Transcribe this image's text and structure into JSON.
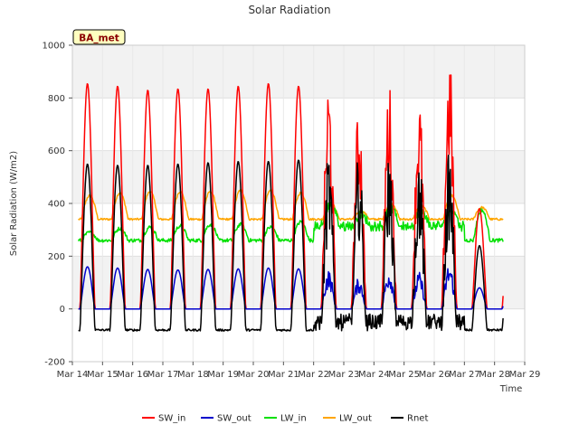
{
  "chart_data": {
    "type": "line",
    "title": "Solar Radiation",
    "xlabel": "Time",
    "ylabel": "Solar Radiation (W/m2)",
    "badge": "BA_met",
    "ylim": [
      -200,
      1000
    ],
    "yticks": [
      "-200",
      "0",
      "200",
      "400",
      "600",
      "800",
      "1000"
    ],
    "xlim_days": [
      14,
      29
    ],
    "xticks": [
      "Mar 14",
      "Mar 15",
      "Mar 16",
      "Mar 17",
      "Mar 18",
      "Mar 19",
      "Mar 20",
      "Mar 21",
      "Mar 22",
      "Mar 23",
      "Mar 24",
      "Mar 25",
      "Mar 26",
      "Mar 27",
      "Mar 28",
      "Mar 29"
    ],
    "grid": true,
    "legend_position": "bottom",
    "series": [
      {
        "name": "SW_in",
        "color": "#ff0000",
        "daily_peak": [
          855,
          845,
          830,
          835,
          835,
          845,
          855,
          845,
          880,
          780,
          870,
          820,
          970,
          380
        ],
        "night_value": 0
      },
      {
        "name": "SW_out",
        "color": "#0000cc",
        "daily_peak": [
          160,
          155,
          150,
          148,
          150,
          152,
          155,
          152,
          150,
          120,
          155,
          140,
          175,
          80
        ],
        "night_value": 0
      },
      {
        "name": "LW_in",
        "color": "#00e000",
        "daily_peak": [
          290,
          305,
          310,
          315,
          320,
          320,
          310,
          330,
          340,
          300,
          320,
          310,
          320,
          375
        ],
        "night_value": 260
      },
      {
        "name": "LW_out",
        "color": "#ffa500",
        "daily_peak": [
          430,
          440,
          445,
          445,
          445,
          450,
          450,
          440,
          400,
          370,
          400,
          390,
          430,
          385
        ],
        "night_value": 340
      },
      {
        "name": "Rnet",
        "color": "#000000",
        "daily_peak": [
          550,
          545,
          545,
          550,
          555,
          560,
          560,
          565,
          600,
          600,
          610,
          590,
          600,
          240
        ],
        "night_value": -80
      }
    ]
  }
}
